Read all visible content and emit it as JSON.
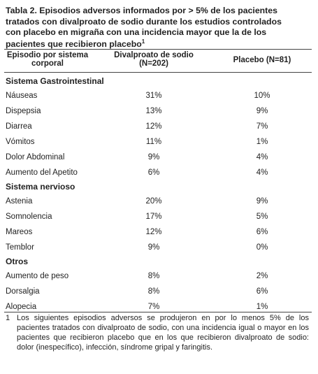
{
  "title": {
    "lines": [
      "Tabla 2. Episodios adversos informados por > 5% de los pacientes",
      "tratados con divalproato de sodio durante los estudios controlados",
      "con placebo en migraña con una incidencia mayor que la de los",
      "pacientes que recibieron placebo"
    ],
    "note_ref": "1"
  },
  "table": {
    "header": [
      "Episodio por sistema corporal",
      "Divalproato de sodio (N=202)",
      "Placebo (N=81)"
    ],
    "sections": [
      {
        "name": "Sistema Gastrointestinal",
        "rows": [
          [
            "Náuseas",
            "31%",
            "10%"
          ],
          [
            "Dispepsia",
            "13%",
            "9%"
          ],
          [
            "Diarrea",
            "12%",
            "7%"
          ],
          [
            "Vómitos",
            "11%",
            "1%"
          ],
          [
            "Dolor Abdominal",
            "9%",
            "4%"
          ],
          [
            "Aumento del Apetito",
            "6%",
            "4%"
          ]
        ]
      },
      {
        "name": "Sistema nervioso",
        "rows": [
          [
            "Astenia",
            "20%",
            "9%"
          ],
          [
            "Somnolencia",
            "17%",
            "5%"
          ],
          [
            "Mareos",
            "12%",
            "6%"
          ],
          [
            "Temblor",
            "9%",
            "0%"
          ]
        ]
      },
      {
        "name": "Otros",
        "rows": [
          [
            "Aumento de peso",
            "8%",
            "2%"
          ],
          [
            "Dorsalgia",
            "8%",
            "6%"
          ],
          [
            "Alopecia",
            "7%",
            "1%"
          ]
        ]
      }
    ]
  },
  "footnote": {
    "marker": "1",
    "text": "Los siguientes episodios adversos se produjeron en por lo menos 5% de los pacientes tratados con divalproato de sodio, con una incidencia igual o mayor en los pacientes que recibieron placebo que en los que recibieron divalproato de sodio: dolor (inespecífico), infección, síndrome gripal y faringitis."
  }
}
